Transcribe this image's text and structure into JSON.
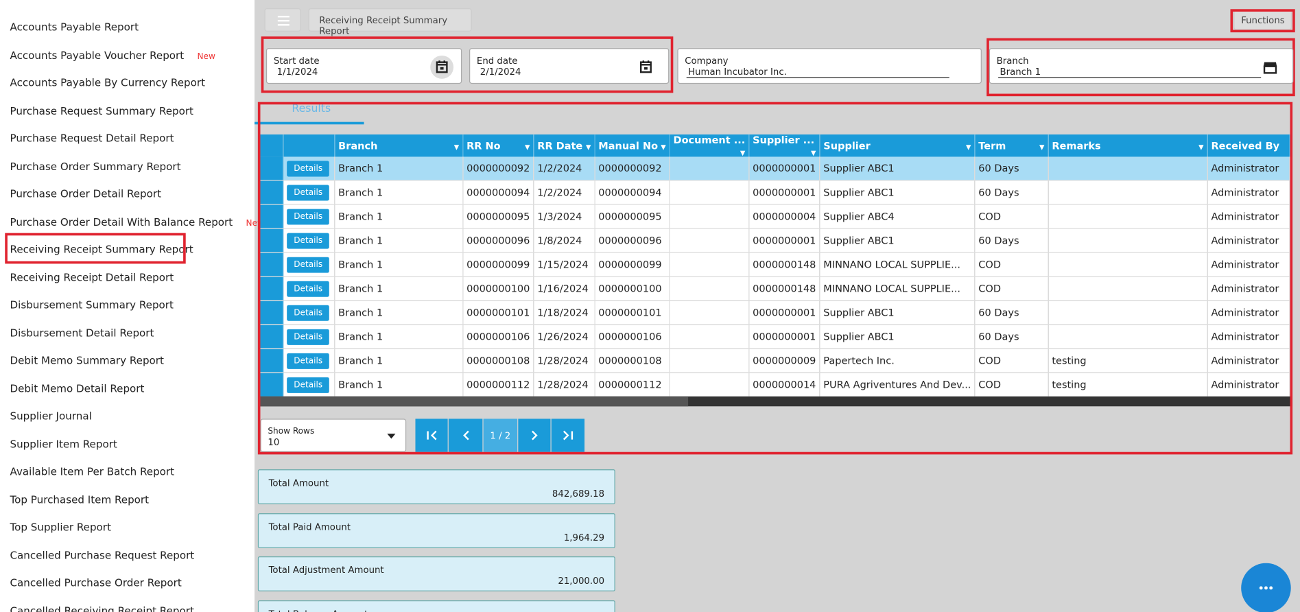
{
  "sidebar": {
    "items": [
      {
        "label": "Accounts Payable Report"
      },
      {
        "label": "Accounts Payable Voucher Report",
        "badge": "New"
      },
      {
        "label": "Accounts Payable By Currency Report"
      },
      {
        "label": "Purchase Request Summary Report"
      },
      {
        "label": "Purchase Request Detail Report"
      },
      {
        "label": "Purchase Order Summary Report"
      },
      {
        "label": "Purchase Order Detail Report"
      },
      {
        "label": "Purchase Order Detail With Balance Report",
        "badge": "New"
      },
      {
        "label": "Receiving Receipt Summary Report"
      },
      {
        "label": "Receiving Receipt Detail Report"
      },
      {
        "label": "Disbursement Summary Report"
      },
      {
        "label": "Disbursement Detail Report"
      },
      {
        "label": "Debit Memo Summary Report"
      },
      {
        "label": "Debit Memo Detail Report"
      },
      {
        "label": "Supplier Journal"
      },
      {
        "label": "Supplier Item Report"
      },
      {
        "label": "Available Item Per Batch Report"
      },
      {
        "label": "Top Purchased Item Report"
      },
      {
        "label": "Top Supplier Report"
      },
      {
        "label": "Cancelled Purchase Request Report"
      },
      {
        "label": "Cancelled Purchase Order Report"
      },
      {
        "label": "Cancelled Receiving Receipt Report"
      }
    ]
  },
  "header": {
    "title": "Receiving Receipt Summary Report",
    "functions": "Functions"
  },
  "filters": [
    {
      "label": "Start date",
      "value": "1/1/2024"
    },
    {
      "label": "End date",
      "value": "2/1/2024"
    },
    {
      "label": "Company",
      "value": "Human Incubator Inc."
    },
    {
      "label": "Branch",
      "value": "Branch 1"
    }
  ],
  "tab": "Results",
  "table": {
    "action_label": "Details",
    "columns": [
      "Branch",
      "RR No",
      "RR Date",
      "Manual No",
      "Document ...",
      "Supplier ...",
      "Supplier",
      "Term",
      "Remarks",
      "Received By"
    ],
    "rows": [
      [
        "Branch 1",
        "0000000092",
        "1/2/2024",
        "0000000092",
        null,
        "0000000001",
        "Supplier ABC1",
        "60 Days",
        null,
        "Administrator"
      ],
      [
        "Branch 1",
        "0000000094",
        "1/2/2024",
        "0000000094",
        null,
        "0000000001",
        "Supplier ABC1",
        "60 Days",
        null,
        "Administrator"
      ],
      [
        "Branch 1",
        "0000000095",
        "1/3/2024",
        "0000000095",
        null,
        "0000000004",
        "Supplier ABC4",
        "COD",
        null,
        "Administrator"
      ],
      [
        "Branch 1",
        "0000000096",
        "1/8/2024",
        "0000000096",
        null,
        "0000000001",
        "Supplier ABC1",
        "60 Days",
        null,
        "Administrator"
      ],
      [
        "Branch 1",
        "0000000099",
        "1/15/2024",
        "0000000099",
        null,
        "0000000148",
        "MINNANO LOCAL SUPPLIE...",
        "COD",
        null,
        "Administrator"
      ],
      [
        "Branch 1",
        "0000000100",
        "1/16/2024",
        "0000000100",
        null,
        "0000000148",
        "MINNANO LOCAL SUPPLIE...",
        "COD",
        null,
        "Administrator"
      ],
      [
        "Branch 1",
        "0000000101",
        "1/18/2024",
        "0000000101",
        null,
        "0000000001",
        "Supplier ABC1",
        "60 Days",
        null,
        "Administrator"
      ],
      [
        "Branch 1",
        "0000000106",
        "1/26/2024",
        "0000000106",
        null,
        "0000000001",
        "Supplier ABC1",
        "60 Days",
        null,
        "Administrator"
      ],
      [
        "Branch 1",
        "0000000108",
        "1/28/2024",
        "0000000108",
        null,
        "0000000009",
        "Papertech Inc.",
        "COD",
        "testing",
        "Administrator"
      ],
      [
        "Branch 1",
        "0000000112",
        "1/28/2024",
        "0000000112",
        null,
        "0000000014",
        "PURA Agriventures And Dev...",
        "COD",
        "testing",
        "Administrator"
      ]
    ]
  },
  "pager": {
    "show_rows_label": "Show Rows",
    "show_rows_value": "10",
    "page": "1 / 2"
  },
  "totals": [
    {
      "label": "Total Amount",
      "value": "842,689.18"
    },
    {
      "label": "Total Paid Amount",
      "value": "1,964.29"
    },
    {
      "label": "Total Adjustment Amount",
      "value": "21,000.00"
    },
    {
      "label": "Total Balance Amount",
      "value": null
    }
  ]
}
